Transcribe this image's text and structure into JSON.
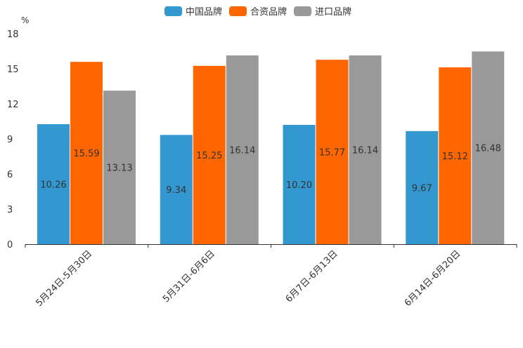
{
  "chart_data": {
    "type": "bar",
    "unit": "%",
    "categories": [
      "5月24日-5月30日",
      "5月31日-6月6日",
      "6月7日-6月13日",
      "6月14日-6月20日"
    ],
    "series": [
      {
        "name": "中国品牌",
        "color": "#3398d0",
        "values": [
          10.26,
          9.34,
          10.2,
          9.67
        ],
        "labels": [
          "10.26",
          "9.34",
          "10.20",
          "9.67"
        ]
      },
      {
        "name": "合资品牌",
        "color": "#ff6600",
        "values": [
          15.59,
          15.25,
          15.77,
          15.12
        ],
        "labels": [
          "15.59",
          "15.25",
          "15.77",
          "15.12"
        ]
      },
      {
        "name": "进口品牌",
        "color": "#999999",
        "values": [
          13.13,
          16.14,
          16.14,
          16.48
        ],
        "labels": [
          "13.13",
          "16.14",
          "16.14",
          "16.48"
        ]
      }
    ],
    "ylim": [
      0,
      18
    ],
    "yticks": [
      "0",
      "3",
      "6",
      "9",
      "12",
      "15",
      "18"
    ],
    "legend_position": "top-center"
  }
}
